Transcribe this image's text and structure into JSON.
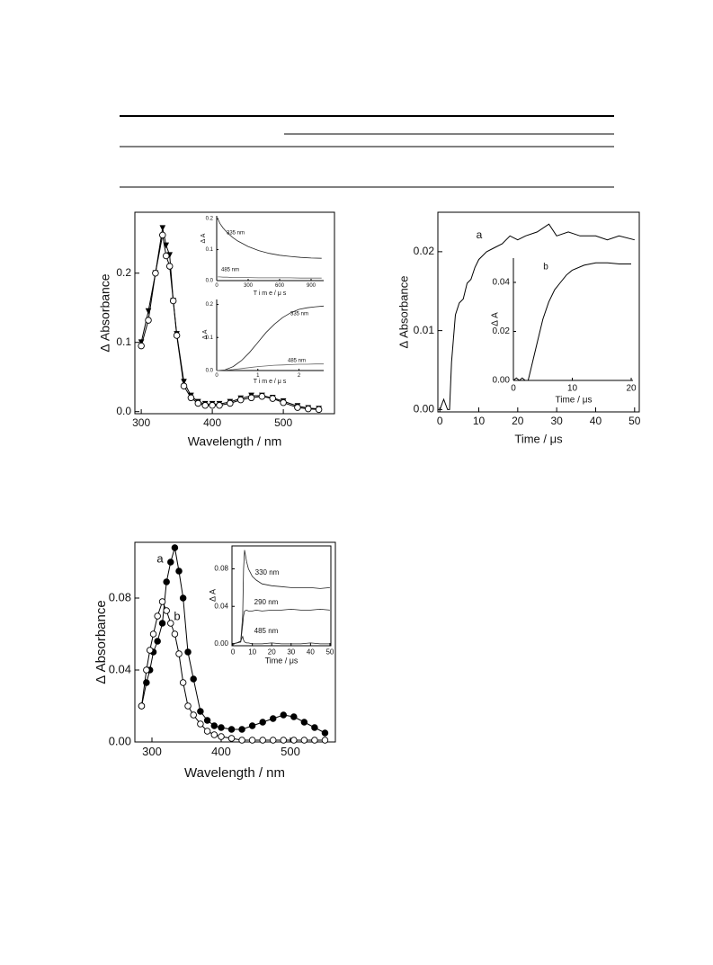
{
  "chart_data": [
    {
      "type": "line",
      "xlabel": "Wavelength / nm",
      "ylabel": "Δ Absorbance",
      "x": [
        300,
        310,
        320,
        330,
        335,
        340,
        345,
        350,
        360,
        370,
        380,
        390,
        400,
        410,
        425,
        440,
        455,
        470,
        485,
        500,
        520,
        535,
        550
      ],
      "series": [
        {
          "color": "#000000",
          "marker": "triangle-down",
          "values": [
            0.1,
            0.145,
            0.2,
            0.265,
            0.24,
            0.226,
            0.16,
            0.112,
            0.043,
            0.023,
            0.014,
            0.011,
            0.011,
            0.011,
            0.014,
            0.019,
            0.023,
            0.023,
            0.02,
            0.015,
            0.008,
            0.005,
            0.004
          ]
        },
        {
          "color": "#000000",
          "marker": "circle-open",
          "values": [
            0.095,
            0.132,
            0.2,
            0.255,
            0.225,
            0.21,
            0.16,
            0.11,
            0.037,
            0.02,
            0.012,
            0.009,
            0.009,
            0.009,
            0.012,
            0.017,
            0.02,
            0.022,
            0.019,
            0.013,
            0.006,
            0.004,
            0.003
          ]
        }
      ],
      "xlim": [
        291,
        572
      ],
      "xticks": [
        300,
        400,
        500
      ],
      "ylim": [
        -0.003,
        0.288
      ],
      "yticks": [
        {
          "value": 0,
          "label": "0.0"
        },
        0.1,
        0.2
      ]
    },
    {
      "type": "line",
      "xlabel": "T i m e / μ s",
      "ylabel": "Δ A",
      "x": [
        10,
        30,
        60,
        100,
        150,
        200,
        300,
        400,
        500,
        600,
        700,
        800,
        900,
        1000
      ],
      "series": [
        {
          "name": "335 nm",
          "color": "#222222",
          "marker": "none",
          "values": [
            0.2,
            0.185,
            0.17,
            0.155,
            0.14,
            0.128,
            0.11,
            0.097,
            0.088,
            0.082,
            0.078,
            0.075,
            0.073,
            0.072
          ]
        },
        {
          "name": "485 nm",
          "color": "#666666",
          "marker": "none",
          "values": [
            0.012,
            0.012,
            0.011,
            0.011,
            0.01,
            0.01,
            0.01,
            0.009,
            0.009,
            0.009,
            0.009,
            0.008,
            0.008,
            0.008
          ]
        }
      ],
      "xlim": [
        0,
        1020
      ],
      "xticks": [
        0,
        300,
        600,
        900
      ],
      "ylim": [
        0,
        0.209
      ],
      "yticks": [
        {
          "value": 0,
          "label": "0.0"
        },
        0.1,
        0.2
      ]
    },
    {
      "type": "line",
      "xlabel": "T i m e / μ s",
      "ylabel": "Δ A",
      "x": [
        0,
        0.2,
        0.4,
        0.6,
        0.8,
        1.0,
        1.2,
        1.4,
        1.6,
        1.8,
        2.0,
        2.2,
        2.4,
        2.6
      ],
      "series": [
        {
          "name": "335 nm",
          "color": "#222222",
          "marker": "none",
          "values": [
            0,
            0.002,
            0.012,
            0.03,
            0.055,
            0.085,
            0.115,
            0.14,
            0.16,
            0.175,
            0.185,
            0.19,
            0.193,
            0.195
          ]
        },
        {
          "name": "485 nm",
          "color": "#666666",
          "marker": "none",
          "values": [
            0,
            0.001,
            0.003,
            0.006,
            0.009,
            0.012,
            0.014,
            0.016,
            0.017,
            0.018,
            0.019,
            0.019,
            0.02,
            0.02
          ]
        }
      ],
      "xlim": [
        0,
        2.6
      ],
      "xticks": [
        0,
        1,
        2
      ],
      "ylim": [
        0,
        0.215
      ],
      "yticks": [
        {
          "value": 0,
          "label": "0.0"
        },
        0.1,
        0.2
      ]
    },
    {
      "type": "line",
      "xlabel": "Time / μs",
      "ylabel": "Δ Absorbance",
      "x": [
        0,
        1,
        2,
        2.5,
        3,
        4,
        5,
        6,
        7,
        8,
        9,
        10,
        12,
        14,
        16,
        18,
        20,
        22,
        25,
        28,
        30,
        33,
        36,
        40,
        43,
        46,
        50
      ],
      "series": [
        {
          "name": "a",
          "color": "#000000",
          "marker": "none",
          "values": [
            0,
            0.0013,
            0,
            0,
            0.006,
            0.012,
            0.0135,
            0.014,
            0.016,
            0.0165,
            0.018,
            0.019,
            0.02,
            0.0205,
            0.021,
            0.022,
            0.0215,
            0.022,
            0.0225,
            0.0235,
            0.022,
            0.0225,
            0.022,
            0.022,
            0.0215,
            0.022,
            0.0215
          ]
        }
      ],
      "xlim": [
        -0.5,
        51.2
      ],
      "xticks": [
        0,
        10,
        20,
        30,
        40,
        50
      ],
      "ylim": [
        -0.0003,
        0.025
      ],
      "yticks": [
        {
          "value": 0,
          "label": "0.00"
        },
        0.01,
        0.02
      ]
    },
    {
      "type": "line",
      "xlabel": "Time / μs",
      "ylabel": "Δ A",
      "x": [
        0,
        0.5,
        1,
        1.5,
        2,
        2.5,
        3,
        4,
        5,
        6,
        7,
        8,
        9,
        10,
        12,
        14,
        16,
        18,
        20
      ],
      "series": [
        {
          "name": "b",
          "color": "#000000",
          "marker": "none",
          "values": [
            0,
            0.001,
            0,
            0.001,
            0,
            0,
            0.005,
            0.015,
            0.025,
            0.032,
            0.037,
            0.04,
            0.043,
            0.045,
            0.047,
            0.048,
            0.048,
            0.0475,
            0.0475
          ]
        }
      ],
      "xlim": [
        0,
        20.3
      ],
      "xticks": [
        0,
        10,
        20
      ],
      "ylim": [
        0,
        0.0499
      ],
      "yticks": [
        {
          "value": 0,
          "label": "0.00"
        },
        0.02,
        0.04
      ]
    },
    {
      "type": "line",
      "xlabel": "Wavelength / nm",
      "ylabel": "Δ Absorbance",
      "x": [
        285,
        292,
        297,
        302,
        308,
        315,
        321,
        327,
        333,
        339,
        345,
        352,
        360,
        370,
        380,
        390,
        400,
        415,
        430,
        445,
        460,
        475,
        490,
        505,
        520,
        535,
        550
      ],
      "series": [
        {
          "name": "a",
          "color": "#000000",
          "marker": "circle-filled",
          "values": [
            0.02,
            0.033,
            0.04,
            0.05,
            0.056,
            0.066,
            0.089,
            0.1,
            0.108,
            0.095,
            0.08,
            0.05,
            0.035,
            0.017,
            0.012,
            0.009,
            0.008,
            0.007,
            0.007,
            0.009,
            0.011,
            0.013,
            0.015,
            0.014,
            0.011,
            0.008,
            0.005
          ]
        },
        {
          "name": "b",
          "color": "#000000",
          "marker": "circle-open",
          "values": [
            0.02,
            0.04,
            0.051,
            0.06,
            0.07,
            0.078,
            0.073,
            0.066,
            0.06,
            0.049,
            0.033,
            0.02,
            0.015,
            0.01,
            0.006,
            0.004,
            0.003,
            0.002,
            0.001,
            0.001,
            0.001,
            0.001,
            0.001,
            0.001,
            0.001,
            0.001,
            0.001
          ]
        }
      ],
      "xlim": [
        275.3,
        565
      ],
      "xticks": [
        300,
        400,
        500
      ],
      "ylim": [
        0,
        0.111
      ],
      "yticks": [
        {
          "value": 0,
          "label": "0.00"
        },
        0.04,
        0.08
      ]
    },
    {
      "type": "line",
      "xlabel": "Time / μs",
      "ylabel": "Δ A",
      "x": [
        0,
        2,
        4,
        5,
        5.5,
        6,
        7,
        8,
        10,
        12,
        15,
        20,
        25,
        30,
        35,
        40,
        45,
        50
      ],
      "series": [
        {
          "name": "330 nm",
          "color": "#222222",
          "marker": "none",
          "values": [
            0,
            0.001,
            0.002,
            0.03,
            0.08,
            0.1,
            0.088,
            0.08,
            0.072,
            0.068,
            0.064,
            0.062,
            0.061,
            0.06,
            0.06,
            0.06,
            0.059,
            0.06
          ]
        },
        {
          "name": "290 nm",
          "color": "#222222",
          "marker": "none",
          "values": [
            0,
            0.001,
            0.002,
            0.02,
            0.03,
            0.035,
            0.036,
            0.035,
            0.035,
            0.036,
            0.035,
            0.036,
            0.036,
            0.037,
            0.036,
            0.036,
            0.037,
            0.036
          ]
        },
        {
          "name": "485 nm",
          "color": "#222222",
          "marker": "none",
          "values": [
            0,
            0.001,
            0.003,
            0.008,
            0.004,
            0.002,
            0.001,
            0.001,
            0,
            0,
            0,
            0.001,
            0,
            0,
            0,
            0.001,
            0,
            0
          ]
        }
      ],
      "xlim": [
        -0.5,
        50.5
      ],
      "xticks": [
        0,
        10,
        20,
        30,
        40,
        50
      ],
      "ylim": [
        -0.002,
        0.1045
      ],
      "yticks": [
        {
          "value": 0,
          "label": "0.00"
        },
        0.04,
        0.08
      ]
    }
  ]
}
